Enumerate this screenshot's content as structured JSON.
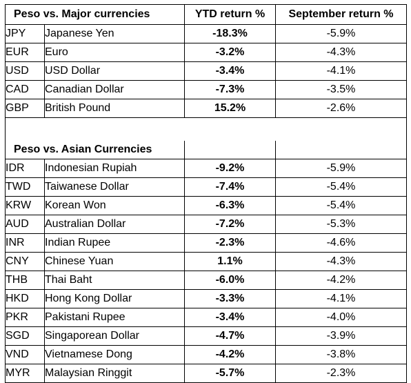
{
  "chart_data": {
    "type": "table",
    "columns": [
      "Peso vs. Major currencies",
      "YTD return %",
      "September return %"
    ],
    "sections": [
      {
        "title": "Peso vs. Major currencies",
        "rows": [
          {
            "code": "JPY",
            "name": "Japanese Yen",
            "ytd": "-18.3%",
            "sep": "-5.9%"
          },
          {
            "code": "EUR",
            "name": "Euro",
            "ytd": "-3.2%",
            "sep": "-4.3%"
          },
          {
            "code": "USD",
            "name": "USD Dollar",
            "ytd": "-3.4%",
            "sep": "-4.1%"
          },
          {
            "code": "CAD",
            "name": "Canadian Dollar",
            "ytd": "-7.3%",
            "sep": "-3.5%"
          },
          {
            "code": "GBP",
            "name": "British Pound",
            "ytd": "15.2%",
            "sep": "-2.6%"
          }
        ]
      },
      {
        "title": "Peso vs. Asian Currencies",
        "rows": [
          {
            "code": "IDR",
            "name": "Indonesian Rupiah",
            "ytd": "-9.2%",
            "sep": "-5.9%"
          },
          {
            "code": "TWD",
            "name": "Taiwanese Dollar",
            "ytd": "-7.4%",
            "sep": "-5.4%"
          },
          {
            "code": "KRW",
            "name": "Korean Won",
            "ytd": "-6.3%",
            "sep": "-5.4%"
          },
          {
            "code": "AUD",
            "name": "Australian Dollar",
            "ytd": "-7.2%",
            "sep": "-5.3%"
          },
          {
            "code": "INR",
            "name": "Indian Rupee",
            "ytd": "-2.3%",
            "sep": "-4.6%"
          },
          {
            "code": "CNY",
            "name": "Chinese Yuan",
            "ytd": "1.1%",
            "sep": "-4.3%"
          },
          {
            "code": "THB",
            "name": "Thai Baht",
            "ytd": "-6.0%",
            "sep": "-4.2%"
          },
          {
            "code": "HKD",
            "name": "Hong Kong Dollar",
            "ytd": "-3.3%",
            "sep": "-4.1%"
          },
          {
            "code": "PKR",
            "name": "Pakistani Rupee",
            "ytd": "-3.4%",
            "sep": "-4.0%"
          },
          {
            "code": "SGD",
            "name": "Singaporean Dollar",
            "ytd": "-4.7%",
            "sep": "-3.9%"
          },
          {
            "code": "VND",
            "name": "Vietnamese Dong",
            "ytd": "-4.2%",
            "sep": "-3.8%"
          },
          {
            "code": "MYR",
            "name": "Malaysian Ringgit",
            "ytd": "-5.7%",
            "sep": "-2.3%"
          }
        ]
      }
    ]
  }
}
